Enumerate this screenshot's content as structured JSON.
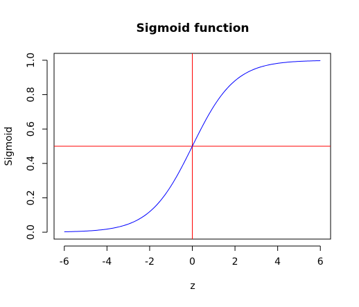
{
  "chart_data": {
    "type": "line",
    "title": "Sigmoid function",
    "xlabel": "z",
    "ylabel": "Sigmoid",
    "xlim": [
      -6.48,
      6.48
    ],
    "ylim": [
      -0.04,
      1.04
    ],
    "xticks": [
      -6,
      -4,
      -2,
      0,
      2,
      4,
      6
    ],
    "xtick_labels": [
      "-6",
      "-4",
      "-2",
      "0",
      "2",
      "4",
      "6"
    ],
    "yticks": [
      0.0,
      0.2,
      0.4,
      0.6,
      0.8,
      1.0
    ],
    "ytick_labels": [
      "0.0",
      "0.2",
      "0.4",
      "0.6",
      "0.8",
      "1.0"
    ],
    "grid": false,
    "legend": "none",
    "series": [
      {
        "function": "1/(1+exp(-z))",
        "color": "#0000ff",
        "x": [
          -6,
          -5.5,
          -5,
          -4.5,
          -4,
          -3.5,
          -3,
          -2.5,
          -2,
          -1.5,
          -1,
          -0.5,
          0,
          0.5,
          1,
          1.5,
          2,
          2.5,
          3,
          3.5,
          4,
          4.5,
          5,
          5.5,
          6
        ],
        "y": [
          0.0025,
          0.0041,
          0.0067,
          0.011,
          0.018,
          0.029,
          0.047,
          0.076,
          0.119,
          0.182,
          0.269,
          0.378,
          0.5,
          0.622,
          0.731,
          0.818,
          0.881,
          0.924,
          0.953,
          0.971,
          0.982,
          0.989,
          0.993,
          0.996,
          0.9975
        ]
      }
    ],
    "reference_lines": [
      {
        "orientation": "horizontal",
        "value": 0.5,
        "color": "#ff0000"
      },
      {
        "orientation": "vertical",
        "value": 0,
        "color": "#ff0000"
      }
    ]
  }
}
